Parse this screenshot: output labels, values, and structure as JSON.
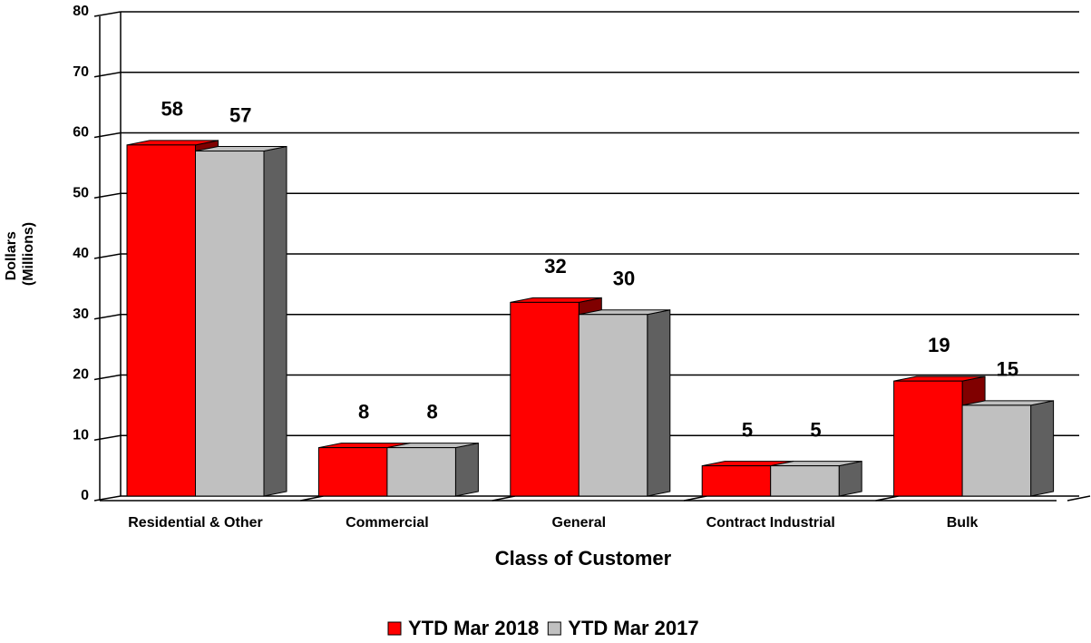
{
  "chart_data": {
    "type": "bar3d",
    "x_label": "Class of Customer",
    "y_label": [
      "Dollars",
      "(Millions)"
    ],
    "categories": [
      "Residential & Other",
      "Commercial",
      "General",
      "Contract Industrial",
      "Bulk"
    ],
    "series": [
      {
        "name": "YTD Mar 2018",
        "color": "#ff0000",
        "side_color": "#800000",
        "values": [
          58,
          8,
          32,
          5,
          19
        ]
      },
      {
        "name": "YTD Mar 2017",
        "color": "#c0c0c0",
        "side_color": "#606060",
        "values": [
          57,
          8,
          30,
          5,
          15
        ]
      }
    ],
    "ylim": [
      0,
      80
    ],
    "yticks": [
      0,
      10,
      20,
      30,
      40,
      50,
      60,
      70,
      80
    ],
    "grid": true,
    "legend": "bottom"
  }
}
